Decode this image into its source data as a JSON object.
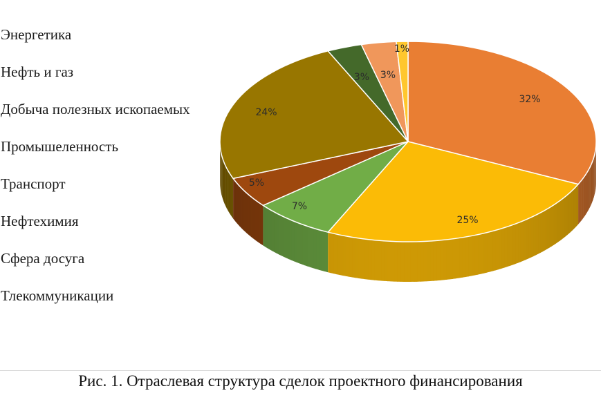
{
  "chart_data": {
    "type": "pie",
    "title": "",
    "categories": [
      "Энергетика",
      "Нефть и газ",
      "Добыча полезных ископаемых",
      "Промышеленность",
      "Транспорт",
      "Нефтехимия",
      "Сфера досуга",
      "Тлекоммуникации"
    ],
    "values": [
      32,
      25,
      7,
      5,
      24,
      3,
      3,
      1
    ],
    "labels": [
      "32%",
      "25%",
      "7%",
      "5%",
      "24%",
      "3%",
      "3%",
      "1%"
    ],
    "colors": [
      "#E97E33",
      "#FBBB06",
      "#71AD47",
      "#9E480E",
      "#987600",
      "#44692A",
      "#F0975B",
      "#FFC72E"
    ],
    "legend_position": "left",
    "style": "3d-pie"
  },
  "caption": "Рис. 1. Отраслевая структура сделок проектного финансирования"
}
